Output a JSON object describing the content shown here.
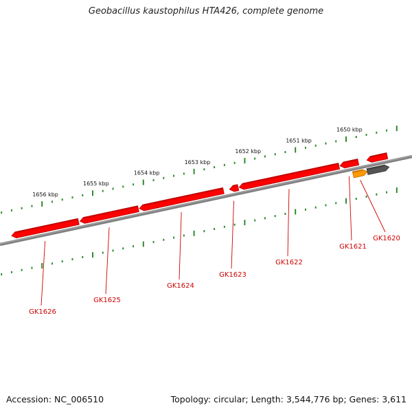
{
  "title": "Geobacillus kaustophilus HTA426, complete genome",
  "footer": {
    "accession": "Accession: NC_006510",
    "stats": "Topology: circular; Length: 3,544,776 bp; Genes: 3,611"
  },
  "colors": {
    "backbone": "#808080",
    "gene": "#ff0000",
    "gene_dark": "#b00000",
    "gene_orange": "#ff9900",
    "gene_gray": "#555555",
    "tick": "#2e8b2e",
    "label": "#cc0000"
  },
  "scale": {
    "unit": "kbp",
    "labels": [
      {
        "text": "1650 kbp",
        "kbp": 1650
      },
      {
        "text": "1651 kbp",
        "kbp": 1651
      },
      {
        "text": "1652 kbp",
        "kbp": 1652
      },
      {
        "text": "1653 kbp",
        "kbp": 1653
      },
      {
        "text": "1654 kbp",
        "kbp": 1654
      },
      {
        "text": "1655 kbp",
        "kbp": 1655
      },
      {
        "text": "1656 kbp",
        "kbp": 1656
      }
    ]
  },
  "genes": [
    {
      "label": "GK1620",
      "start_kbp": 1649.58,
      "end_kbp": 1649.86,
      "strand": "reverse",
      "color": "orange"
    },
    {
      "label": "",
      "start_kbp": 1649.15,
      "end_kbp": 1649.58,
      "strand": "reverse",
      "color": "gray"
    },
    {
      "label": "",
      "start_kbp": 1649.19,
      "end_kbp": 1649.59,
      "strand": "forward",
      "color": "red"
    },
    {
      "label": "GK1621",
      "start_kbp": 1649.76,
      "end_kbp": 1650.12,
      "strand": "forward",
      "color": "red"
    },
    {
      "label": "GK1622",
      "start_kbp": 1650.14,
      "end_kbp": 1652.11,
      "strand": "forward",
      "color": "red"
    },
    {
      "label": "GK1623",
      "start_kbp": 1652.13,
      "end_kbp": 1652.3,
      "strand": "forward",
      "color": "red"
    },
    {
      "label": "GK1624",
      "start_kbp": 1652.42,
      "end_kbp": 1654.08,
      "strand": "forward",
      "color": "red"
    },
    {
      "label": "GK1625",
      "start_kbp": 1654.1,
      "end_kbp": 1655.25,
      "strand": "forward",
      "color": "red"
    },
    {
      "label": "GK1626",
      "start_kbp": 1655.28,
      "end_kbp": 1656.6,
      "strand": "forward",
      "color": "red"
    }
  ]
}
